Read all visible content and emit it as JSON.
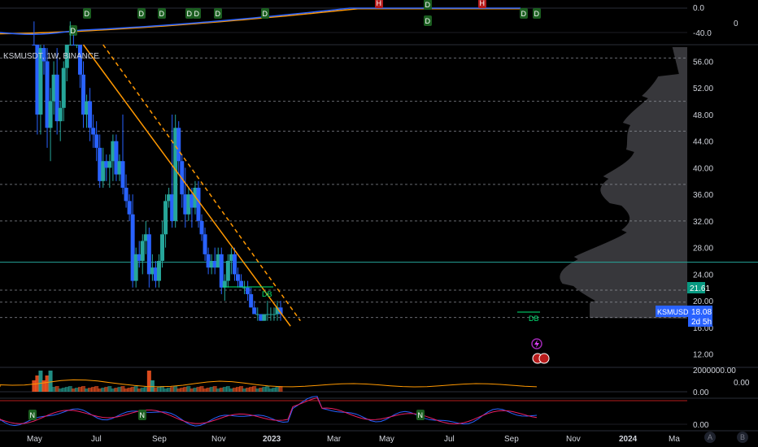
{
  "legend": {
    "symbol": "KSMUSDT, 1W, BINANCE"
  },
  "top_panel": {
    "y_labels": [
      "0.0",
      "-40.0"
    ],
    "right_label": "0",
    "ylim": [
      -60,
      10
    ],
    "marker_labels": [
      "D",
      "D",
      "D",
      "D",
      "D",
      "D",
      "D",
      "H",
      "D",
      "D",
      "H",
      "D",
      "D"
    ],
    "colors": {
      "blue_line": "#2962ff",
      "orange_line": "#ff9800",
      "d_marker": "#1b5e20",
      "h_marker": "#b71c1c"
    }
  },
  "price_axis": {
    "labels": [
      "56.00",
      "52.00",
      "48.00",
      "44.00",
      "40.00",
      "36.00",
      "32.00",
      "28.00",
      "24.00",
      "20.00",
      "16.00",
      "12.00"
    ],
    "ylim": [
      10,
      58.5
    ],
    "current_tag": {
      "symbol": "KSMUSDT",
      "price": "18.08",
      "countdown": "2d 5h",
      "color": "#2962ff"
    },
    "level_tag": {
      "value": "21.61",
      "color": "#089981"
    }
  },
  "time_axis": {
    "labels": [
      "May",
      "Jul",
      "Sep",
      "Nov",
      "2023",
      "Mar",
      "May",
      "Jul",
      "Sep",
      "Nov",
      "2024",
      "Ma"
    ],
    "buttons": [
      "A",
      "B"
    ]
  },
  "patterns": {
    "double_bottom_label": "DB"
  },
  "volume_panel": {
    "labels": [
      "2000000.00",
      "0.00"
    ],
    "right_label": "0.00"
  },
  "oscillator_panel": {
    "labels": [
      "0.00"
    ],
    "n_marker": "N"
  },
  "chart_data": {
    "type": "candlestick",
    "x": [
      "2022-04-25",
      "2022-05-02",
      "2022-05-09",
      "2022-05-16",
      "2022-05-23",
      "2022-05-30",
      "2022-06-06",
      "2022-06-13",
      "2022-06-20",
      "2022-06-27",
      "2022-07-04",
      "2022-07-11",
      "2022-07-18",
      "2022-07-25",
      "2022-08-01",
      "2022-08-08",
      "2022-08-15",
      "2022-08-22",
      "2022-08-29",
      "2022-09-05",
      "2022-09-12",
      "2022-09-19",
      "2022-09-26",
      "2022-10-03",
      "2022-10-10",
      "2022-10-17",
      "2022-10-24",
      "2022-10-31",
      "2022-11-07",
      "2022-11-14",
      "2022-11-21",
      "2022-11-28",
      "2022-12-05",
      "2022-12-12",
      "2022-12-19",
      "2022-12-26",
      "2023-01-02",
      "2023-01-09",
      "2023-01-16",
      "2023-01-23",
      "2023-01-30",
      "2023-02-06",
      "2023-02-13",
      "2023-02-20",
      "2023-02-27",
      "2023-03-06",
      "2023-03-13",
      "2023-03-20",
      "2023-03-27",
      "2023-04-03",
      "2023-04-10",
      "2023-04-17",
      "2023-04-24",
      "2023-05-01",
      "2023-05-08",
      "2023-05-15",
      "2023-05-22",
      "2023-05-29",
      "2023-06-05",
      "2023-06-12",
      "2023-06-19",
      "2023-06-26",
      "2023-07-03",
      "2023-07-10",
      "2023-07-17",
      "2023-07-24",
      "2023-07-31",
      "2023-08-07",
      "2023-08-14",
      "2023-08-21",
      "2023-08-28",
      "2023-09-04",
      "2023-09-11",
      "2023-09-18",
      "2023-09-25",
      "2023-10-02"
    ],
    "ohlc": [
      [
        72,
        76,
        62,
        64
      ],
      [
        64,
        66,
        45,
        48
      ],
      [
        48,
        60,
        45,
        58
      ],
      [
        58,
        60,
        54,
        56
      ],
      [
        56,
        58,
        43,
        46
      ],
      [
        46,
        52,
        41,
        50
      ],
      [
        50,
        56,
        48,
        54
      ],
      [
        54,
        58,
        45,
        47
      ],
      [
        47,
        50,
        44,
        49
      ],
      [
        49,
        56,
        47,
        55
      ],
      [
        55,
        70,
        53,
        68
      ],
      [
        68,
        74,
        62,
        70
      ],
      [
        70,
        72,
        60,
        62
      ],
      [
        62,
        66,
        58,
        64
      ],
      [
        64,
        66,
        52,
        54
      ],
      [
        54,
        56,
        46,
        48
      ],
      [
        48,
        51,
        46,
        50
      ],
      [
        50,
        52,
        44,
        46
      ],
      [
        46,
        48,
        43,
        45
      ],
      [
        45,
        47,
        41,
        43
      ],
      [
        43,
        45,
        37,
        38
      ],
      [
        38,
        43,
        37,
        41
      ],
      [
        41,
        42,
        38,
        40
      ],
      [
        40,
        42,
        37,
        41
      ],
      [
        41,
        45,
        38,
        44
      ],
      [
        44,
        45,
        38,
        39
      ],
      [
        39,
        42,
        38,
        41
      ],
      [
        41,
        48,
        36,
        37
      ],
      [
        37,
        39,
        34,
        35
      ],
      [
        35,
        36,
        32,
        33
      ],
      [
        33,
        36,
        22,
        23
      ],
      [
        23,
        28,
        22,
        27
      ],
      [
        27,
        29,
        25,
        26
      ],
      [
        26,
        30,
        24,
        29
      ],
      [
        29,
        32,
        27,
        30
      ],
      [
        30,
        31,
        22,
        24
      ],
      [
        24,
        27,
        23,
        25
      ],
      [
        25,
        26,
        22,
        23
      ],
      [
        23,
        27,
        22,
        26
      ],
      [
        26,
        32,
        25,
        30
      ],
      [
        30,
        36,
        28,
        35
      ],
      [
        35,
        37,
        34,
        36
      ],
      [
        36,
        48,
        31,
        32
      ],
      [
        32,
        48,
        31,
        46
      ],
      [
        46,
        47,
        39,
        41
      ],
      [
        41,
        42,
        34,
        36
      ],
      [
        36,
        40,
        31,
        33
      ],
      [
        33,
        37,
        32,
        36
      ],
      [
        36,
        37,
        31,
        34
      ],
      [
        34,
        38,
        33,
        37
      ],
      [
        37,
        38,
        31,
        32
      ],
      [
        32,
        33,
        29,
        30
      ],
      [
        30,
        31,
        26,
        27
      ],
      [
        27,
        28,
        24,
        25
      ],
      [
        25,
        27,
        24,
        26
      ],
      [
        26,
        28,
        24,
        25
      ],
      [
        25,
        28,
        25,
        27
      ],
      [
        27,
        28,
        21,
        22
      ],
      [
        22,
        24,
        20,
        23
      ],
      [
        23,
        27,
        22,
        26
      ],
      [
        26,
        28,
        24,
        27
      ],
      [
        27,
        28,
        23,
        24
      ],
      [
        24,
        25,
        22,
        23
      ],
      [
        23,
        24,
        22,
        22
      ],
      [
        22,
        23,
        21,
        22
      ],
      [
        22,
        23,
        20,
        21
      ],
      [
        21,
        22,
        19,
        19
      ],
      [
        19,
        20,
        18,
        18
      ],
      [
        18,
        19,
        17,
        18
      ],
      [
        18,
        18,
        17,
        17
      ],
      [
        17,
        18,
        17,
        18
      ],
      [
        18,
        20,
        17,
        18
      ],
      [
        18,
        19,
        17,
        18
      ],
      [
        18,
        19,
        17,
        18
      ],
      [
        18,
        20,
        17,
        19
      ],
      [
        19,
        20,
        17,
        18
      ]
    ],
    "trendlines": [
      {
        "style": "solid",
        "color": "#ff9800",
        "from": [
          "2022-08-08",
          58.5
        ],
        "to": [
          "2023-10-23",
          16.2
        ]
      },
      {
        "style": "dashed",
        "color": "#ff9800",
        "from": [
          "2022-09-19",
          58.5
        ],
        "to": [
          "2023-11-13",
          17.0
        ]
      }
    ],
    "horizontal_levels": [
      56.5,
      50.0,
      45.5,
      37.5,
      32.0,
      21.6,
      19.8,
      17.5
    ],
    "teal_level": 25.8,
    "ylabel": "",
    "xlabel": ""
  }
}
